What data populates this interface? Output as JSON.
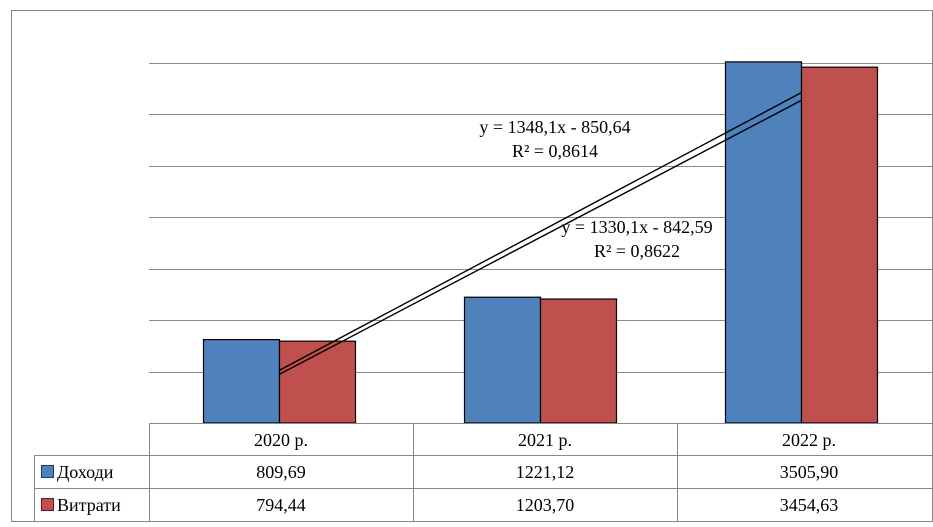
{
  "chart_data": {
    "type": "bar",
    "categories": [
      "2020 р.",
      "2021 р.",
      "2022 р."
    ],
    "series": [
      {
        "name": "Доходи",
        "values": [
          809.69,
          1221.12,
          3505.9
        ],
        "value_labels": [
          "809,69",
          "1221,12",
          "3505,90"
        ],
        "color": "#4F81BD"
      },
      {
        "name": "Витрати",
        "values": [
          794.44,
          1203.7,
          3454.63
        ],
        "value_labels": [
          "794,44",
          "1203,70",
          "3454,63"
        ],
        "color": "#C0504D"
      }
    ],
    "trendlines": [
      {
        "series": "Доходи",
        "equation": "y = 1348,1x - 850,64",
        "r2": "R² = 0,8614"
      },
      {
        "series": "Витрати",
        "equation": "y = 1330,1x - 842,59",
        "r2": "R² = 0,8622"
      }
    ],
    "ylim": [
      0,
      4000
    ],
    "y_gridlines": [
      500,
      1000,
      1500,
      2000,
      2500,
      3000,
      3500
    ],
    "grid": true,
    "legend": "data-table",
    "data_table": true
  }
}
